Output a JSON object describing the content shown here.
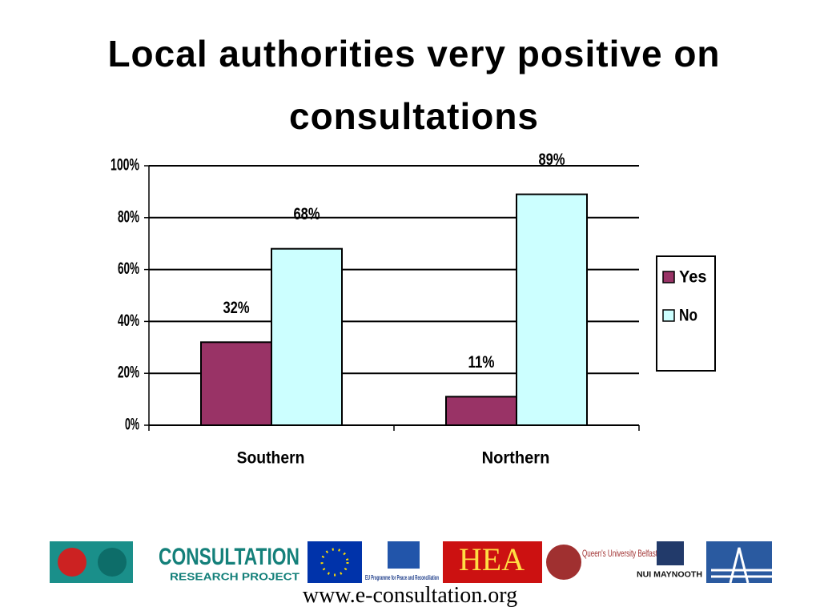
{
  "chart_data": {
    "type": "bar",
    "title": "Local authorities very positive on consultations",
    "categories": [
      "Southern",
      "Northern"
    ],
    "series": [
      {
        "name": "Yes",
        "color": "#993366",
        "values": [
          32,
          11
        ],
        "value_labels": [
          "32%",
          "11%"
        ]
      },
      {
        "name": "No",
        "color": "#ccffff",
        "values": [
          68,
          89
        ],
        "value_labels": [
          "68%",
          "89%"
        ]
      }
    ],
    "ylim": [
      0,
      100
    ],
    "yticks": [
      {
        "value": 0,
        "label": "0%"
      },
      {
        "value": 20,
        "label": "20%"
      },
      {
        "value": 40,
        "label": "40%"
      },
      {
        "value": 60,
        "label": "60%"
      },
      {
        "value": 80,
        "label": "80%"
      },
      {
        "value": 100,
        "label": "100%"
      }
    ],
    "grid": true,
    "legend": "right"
  },
  "logos": [
    "CONSULTATION",
    "RESEARCH PROJECT",
    "EU Programme for Peace and Reconciliation",
    "HEA",
    "Queen's University Belfast",
    "NUI MAYNOOTH"
  ],
  "footer": "www.e-consultation.org"
}
